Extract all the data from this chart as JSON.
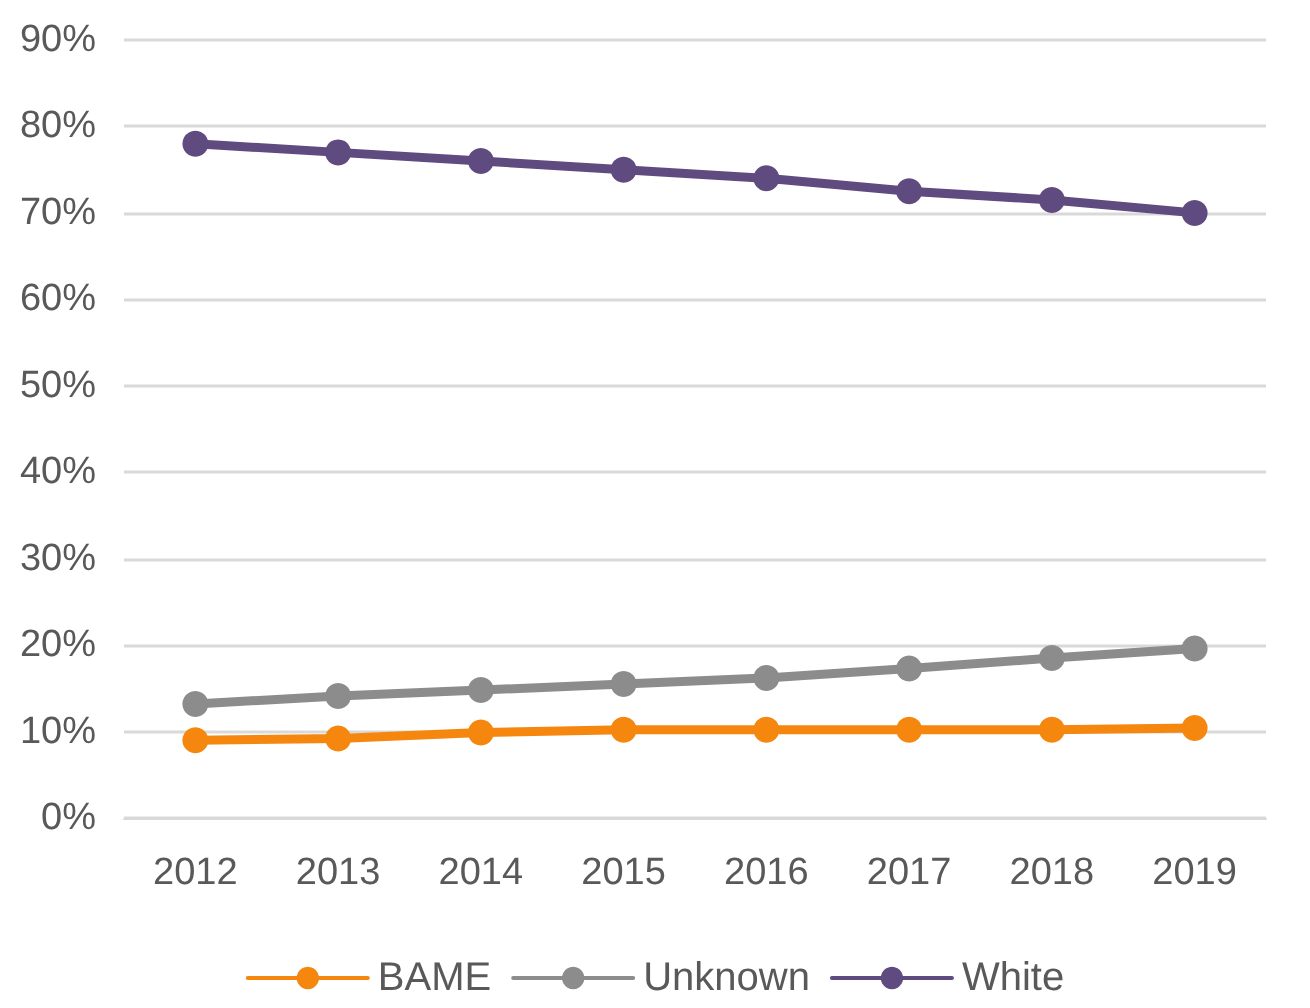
{
  "chart_data": {
    "type": "line",
    "categories": [
      "2012",
      "2013",
      "2014",
      "2015",
      "2016",
      "2017",
      "2018",
      "2019"
    ],
    "series": [
      {
        "name": "BAME",
        "color": "#f5870f",
        "values": [
          9,
          9.2,
          9.9,
          10.2,
          10.2,
          10.2,
          10.2,
          10.4
        ]
      },
      {
        "name": "Unknown",
        "color": "#8c8c8c",
        "values": [
          13.2,
          14.1,
          14.8,
          15.5,
          16.2,
          17.3,
          18.5,
          19.6
        ]
      },
      {
        "name": "White",
        "color": "#5f4b7f",
        "values": [
          78,
          77,
          76,
          75,
          74,
          72.5,
          71.5,
          70
        ]
      }
    ],
    "ylim": [
      0,
      90
    ],
    "yticks": [
      {
        "value": 0,
        "label": "0%"
      },
      {
        "value": 10,
        "label": "10%"
      },
      {
        "value": 20,
        "label": "20%"
      },
      {
        "value": 30,
        "label": "30%"
      },
      {
        "value": 40,
        "label": "40%"
      },
      {
        "value": 50,
        "label": "50%"
      },
      {
        "value": 60,
        "label": "60%"
      },
      {
        "value": 70,
        "label": "70%"
      },
      {
        "value": 80,
        "label": "80%"
      },
      {
        "value": 90,
        "label": "90%"
      }
    ],
    "grid": "y",
    "legend": "bottom",
    "marker": "circle",
    "line_style": "solid"
  }
}
